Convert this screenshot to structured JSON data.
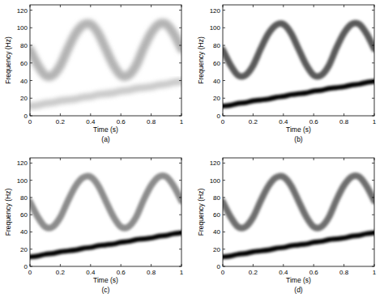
{
  "chart_data": [
    {
      "type": "line",
      "title": "(a)",
      "x_label": "Time (s)",
      "y_label": "Frequency (Hz)",
      "x": [
        0,
        0.05,
        0.1,
        0.15,
        0.2,
        0.25,
        0.3,
        0.35,
        0.4,
        0.45,
        0.5,
        0.55,
        0.6,
        0.65,
        0.7,
        0.75,
        0.8,
        0.85,
        0.9,
        0.95,
        1
      ],
      "series": [
        {
          "color": "#b4b4b4",
          "values": [
            75,
            58,
            46,
            46,
            57,
            76,
            93,
            103,
            104,
            94,
            76,
            58,
            46,
            46,
            57,
            77,
            94,
            104,
            104,
            93,
            76
          ]
        },
        {
          "color": "#cacaca",
          "values": [
            11,
            12,
            14,
            15,
            17,
            18,
            19,
            21,
            22,
            24,
            25,
            26,
            28,
            29,
            31,
            32,
            33,
            35,
            36,
            38,
            39
          ]
        }
      ],
      "xlim": [
        0,
        1
      ],
      "ylim": [
        0,
        126
      ],
      "xticks": [
        0,
        0.2,
        0.4,
        0.6,
        0.8,
        1
      ],
      "yticks": [
        0,
        20,
        40,
        60,
        80,
        100,
        120
      ]
    },
    {
      "type": "line",
      "title": "(b)",
      "x_label": "Time (s)",
      "y_label": "Frequency (Hz)",
      "x": [
        0,
        0.05,
        0.1,
        0.15,
        0.2,
        0.25,
        0.3,
        0.35,
        0.4,
        0.45,
        0.5,
        0.55,
        0.6,
        0.65,
        0.7,
        0.75,
        0.8,
        0.85,
        0.9,
        0.95,
        1
      ],
      "series": [
        {
          "color": "#5a5a5a",
          "values": [
            75,
            58,
            46,
            46,
            57,
            76,
            93,
            103,
            104,
            94,
            76,
            58,
            46,
            46,
            57,
            77,
            94,
            104,
            104,
            93,
            76
          ]
        },
        {
          "color": "#000000",
          "values": [
            11,
            12,
            14,
            15,
            17,
            18,
            19,
            21,
            22,
            24,
            25,
            26,
            28,
            29,
            31,
            32,
            33,
            35,
            36,
            38,
            39
          ]
        }
      ],
      "xlim": [
        0,
        1
      ],
      "ylim": [
        0,
        126
      ],
      "xticks": [
        0,
        0.2,
        0.4,
        0.6,
        0.8,
        1
      ],
      "yticks": [
        0,
        20,
        40,
        60,
        80,
        100,
        120
      ]
    },
    {
      "type": "line",
      "title": "(c)",
      "x_label": "Time (s)",
      "y_label": "Frequency (Hz)",
      "x": [
        0,
        0.05,
        0.1,
        0.15,
        0.2,
        0.25,
        0.3,
        0.35,
        0.4,
        0.45,
        0.5,
        0.55,
        0.6,
        0.65,
        0.7,
        0.75,
        0.8,
        0.85,
        0.9,
        0.95,
        1
      ],
      "series": [
        {
          "color": "#8c8c8c",
          "values": [
            75,
            58,
            46,
            46,
            57,
            76,
            93,
            103,
            104,
            94,
            76,
            58,
            46,
            46,
            57,
            77,
            94,
            104,
            104,
            93,
            76
          ]
        },
        {
          "color": "#000000",
          "values": [
            11,
            12,
            14,
            15,
            17,
            18,
            19,
            21,
            22,
            24,
            25,
            26,
            28,
            29,
            31,
            32,
            33,
            35,
            36,
            38,
            39
          ]
        }
      ],
      "xlim": [
        0,
        1
      ],
      "ylim": [
        0,
        126
      ],
      "xticks": [
        0,
        0.2,
        0.4,
        0.6,
        0.8,
        1
      ],
      "yticks": [
        0,
        20,
        40,
        60,
        80,
        100,
        120
      ]
    },
    {
      "type": "line",
      "title": "(d)",
      "x_label": "Time (s)",
      "y_label": "Frequency (Hz)",
      "x": [
        0,
        0.05,
        0.1,
        0.15,
        0.2,
        0.25,
        0.3,
        0.35,
        0.4,
        0.45,
        0.5,
        0.55,
        0.6,
        0.65,
        0.7,
        0.75,
        0.8,
        0.85,
        0.9,
        0.95,
        1
      ],
      "series": [
        {
          "color": "#6e6e6e",
          "values": [
            75,
            58,
            46,
            46,
            57,
            76,
            93,
            103,
            104,
            94,
            76,
            58,
            46,
            46,
            57,
            77,
            94,
            104,
            104,
            93,
            76
          ]
        },
        {
          "color": "#000000",
          "values": [
            11,
            12,
            14,
            15,
            17,
            18,
            19,
            21,
            22,
            24,
            25,
            26,
            28,
            29,
            31,
            32,
            33,
            35,
            36,
            38,
            39
          ]
        }
      ],
      "xlim": [
        0,
        1
      ],
      "ylim": [
        0,
        126
      ],
      "xticks": [
        0,
        0.2,
        0.4,
        0.6,
        0.8,
        1
      ],
      "yticks": [
        0,
        20,
        40,
        60,
        80,
        100,
        120
      ]
    }
  ]
}
